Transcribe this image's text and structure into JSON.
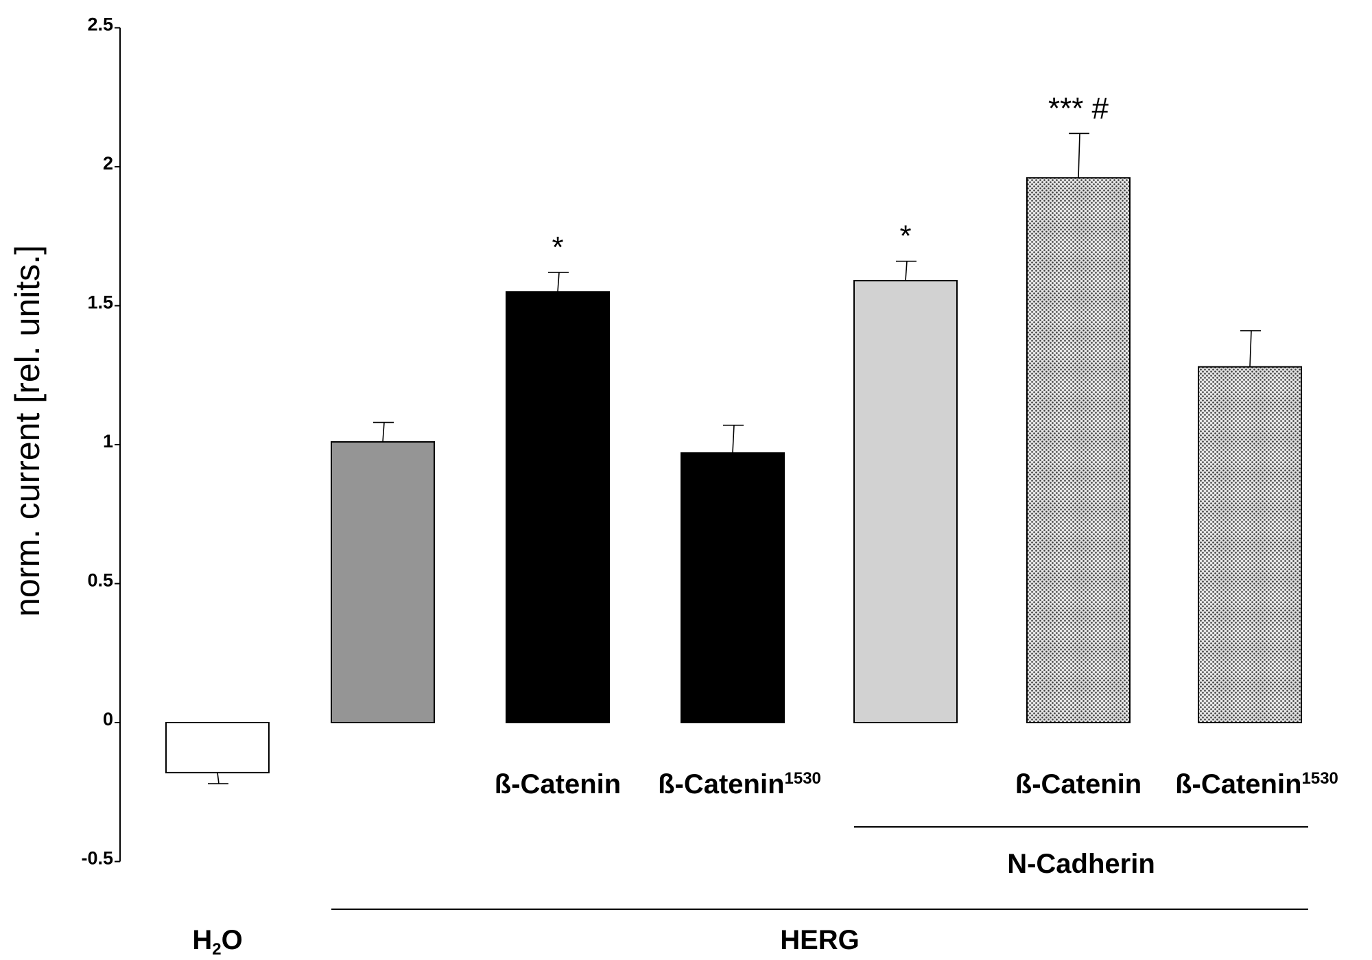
{
  "chart_data": {
    "type": "bar",
    "ylabel": "norm. current [rel. units.]",
    "ylim": [
      -0.5,
      2.5
    ],
    "yticks": [
      "-0.5",
      "0",
      "0.5",
      "1",
      "1.5",
      "2",
      "2.5"
    ],
    "bars": [
      {
        "value": -0.18,
        "error": 0.04,
        "color": "#ffffff",
        "pattern": "none",
        "label": "",
        "sup": "",
        "sig": ""
      },
      {
        "value": 1.01,
        "error": 0.07,
        "color": "#959595",
        "pattern": "none",
        "label": "",
        "sup": "",
        "sig": ""
      },
      {
        "value": 1.55,
        "error": 0.07,
        "color": "#000000",
        "pattern": "none",
        "label": "ß-Catenin",
        "sup": "",
        "sig": "*"
      },
      {
        "value": 0.97,
        "error": 0.1,
        "color": "#000000",
        "pattern": "none",
        "label": "ß-Catenin",
        "sup": "1530",
        "sig": ""
      },
      {
        "value": 1.59,
        "error": 0.07,
        "color": "#d2d2d2",
        "pattern": "none",
        "label": "",
        "sup": "",
        "sig": "*"
      },
      {
        "value": 1.96,
        "error": 0.16,
        "color": "#a8a8a8",
        "pattern": "dots",
        "label": "ß-Catenin",
        "sup": "",
        "sig": "*** #"
      },
      {
        "value": 1.28,
        "error": 0.13,
        "color": "#a8a8a8",
        "pattern": "dots",
        "label": "ß-Catenin",
        "sup": "1530",
        "sig": ""
      }
    ],
    "groups": [
      {
        "label": "N-Cadherin",
        "from": 4,
        "to": 6,
        "level": 1
      },
      {
        "label": "HERG",
        "from": 1,
        "to": 6,
        "level": 2
      }
    ],
    "bottom_label": {
      "main": "H",
      "sub": "2",
      "tail": "O",
      "bar": 0
    }
  }
}
